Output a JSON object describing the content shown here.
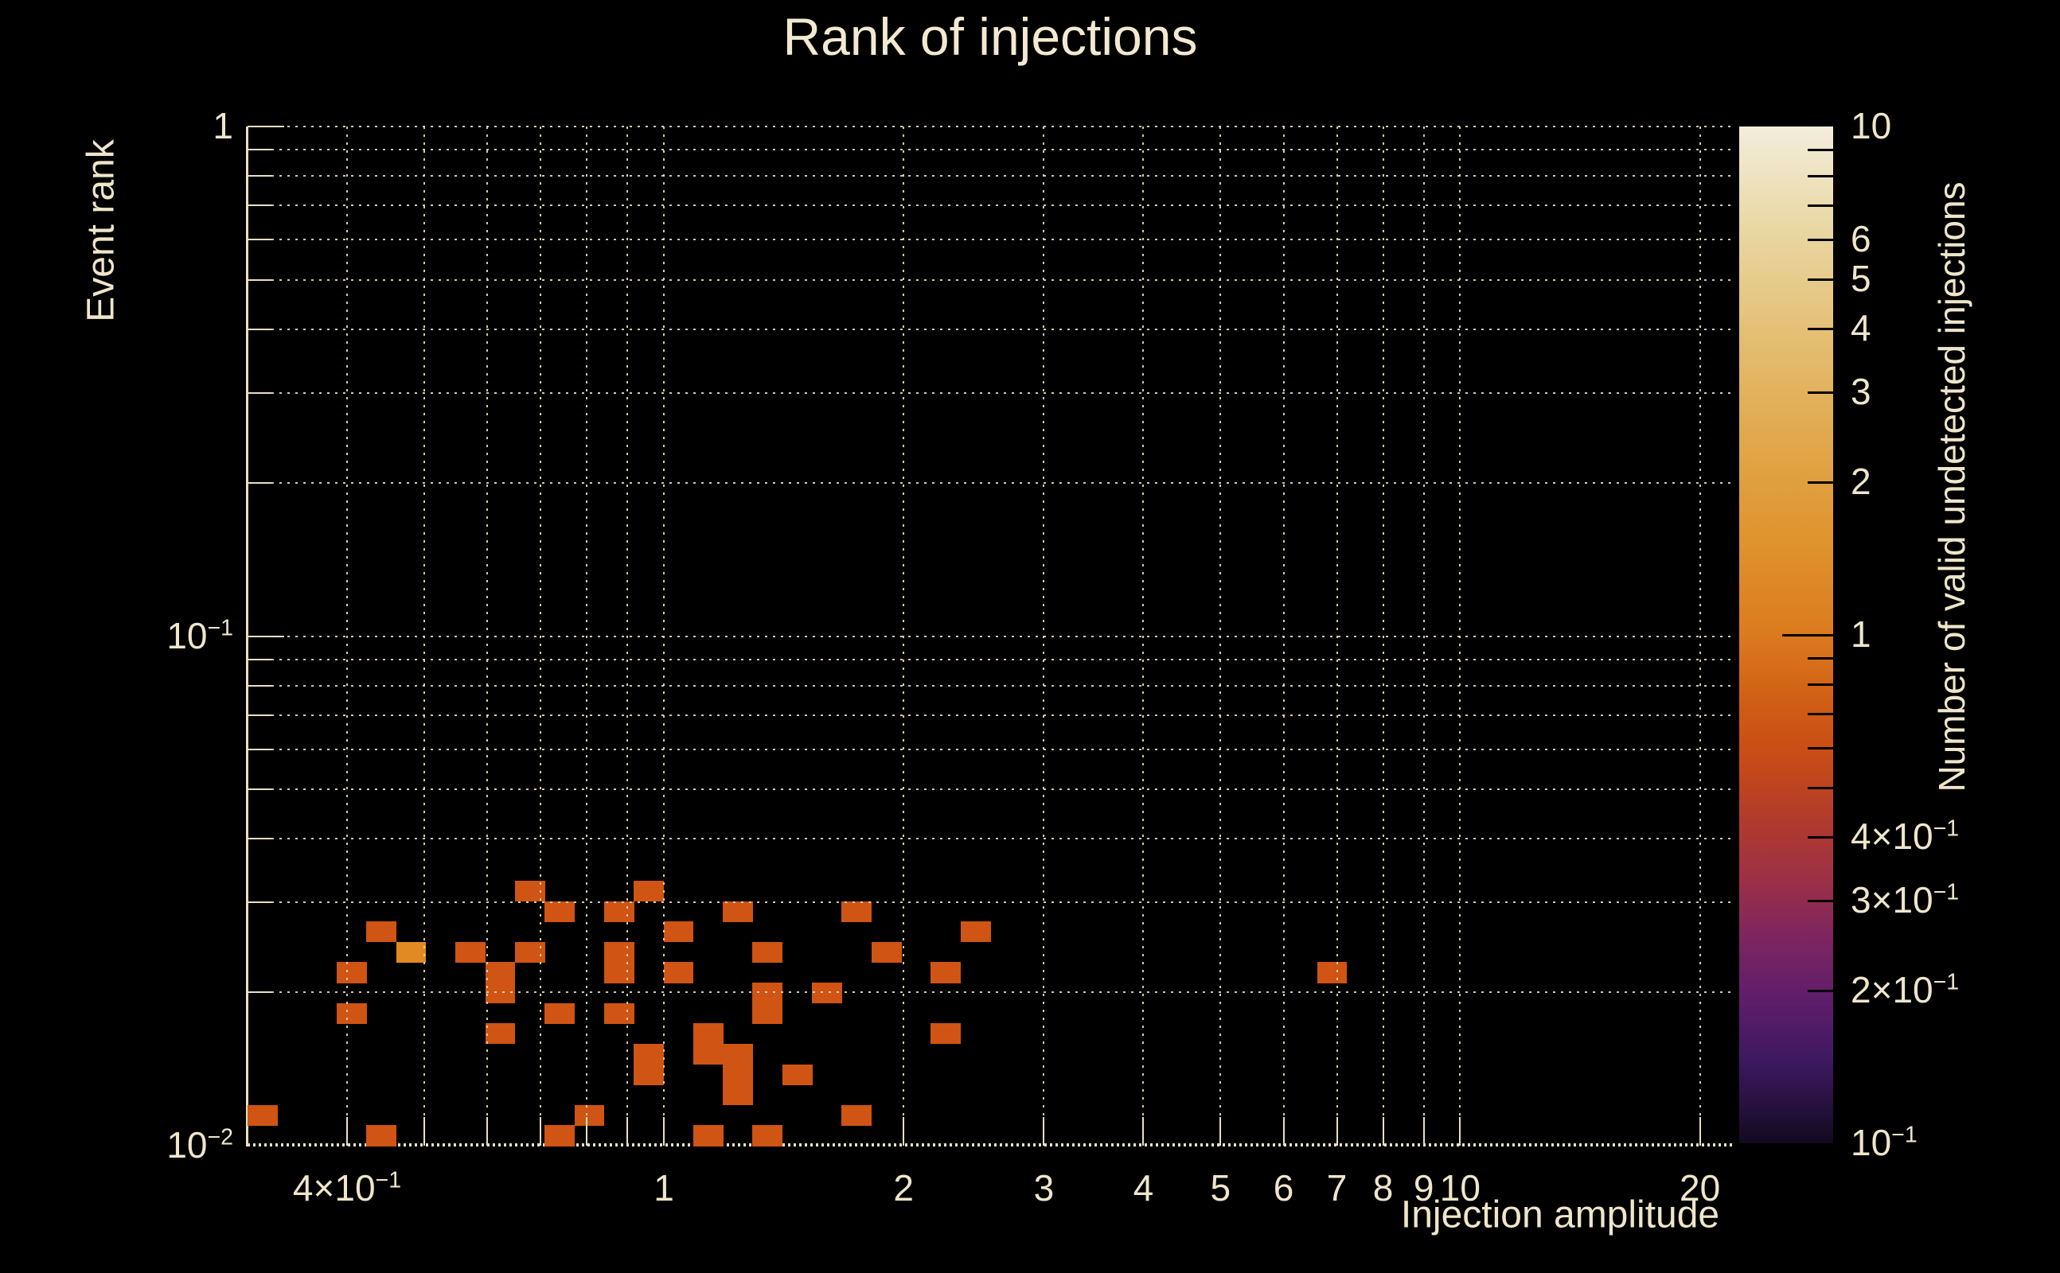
{
  "page": {
    "background": "#000000",
    "text_color": "#efe6ca"
  },
  "chart_data": {
    "type": "heatmap",
    "title": "Rank of injections",
    "xlabel": "Injection amplitude",
    "ylabel": "Event rank",
    "colorbar_label": "Number of valid undetected injections",
    "x_scale": "log",
    "y_scale": "log",
    "z_scale": "log",
    "x_range": [
      0.3,
      22
    ],
    "y_range": [
      0.01,
      1
    ],
    "z_range": [
      0.1,
      10
    ],
    "n_bins_x": 50,
    "n_bins_y": 50,
    "grid": true,
    "x_gridlines": [
      0.4,
      0.5,
      0.6,
      0.7,
      0.8,
      0.9,
      1,
      2,
      3,
      4,
      5,
      6,
      7,
      8,
      9,
      10,
      20
    ],
    "y_gridlines": [
      1,
      0.9,
      0.8,
      0.7,
      0.6,
      0.5,
      0.4,
      0.3,
      0.2,
      0.1,
      0.09,
      0.08,
      0.07,
      0.06,
      0.05,
      0.04,
      0.03,
      0.02
    ],
    "x_tick_labels": [
      {
        "value": 0.4,
        "label": "4×10^−1"
      },
      {
        "value": 1,
        "label": "1"
      },
      {
        "value": 2,
        "label": "2"
      },
      {
        "value": 3,
        "label": "3"
      },
      {
        "value": 4,
        "label": "4"
      },
      {
        "value": 5,
        "label": "5"
      },
      {
        "value": 6,
        "label": "6"
      },
      {
        "value": 7,
        "label": "7"
      },
      {
        "value": 8,
        "label": "8"
      },
      {
        "value": 9,
        "label": "9"
      },
      {
        "value": 10,
        "label": "10"
      },
      {
        "value": 20,
        "label": "20"
      }
    ],
    "y_tick_labels": [
      {
        "value": 1,
        "label": "1"
      },
      {
        "value": 0.1,
        "label": "10^−1"
      },
      {
        "value": 0.01,
        "label": "10^−2"
      }
    ],
    "colorbar_tick_labels": [
      {
        "value": 10,
        "label": "10"
      },
      {
        "value": 6,
        "label": "6"
      },
      {
        "value": 5,
        "label": "5"
      },
      {
        "value": 4,
        "label": "4"
      },
      {
        "value": 3,
        "label": "3"
      },
      {
        "value": 2,
        "label": "2"
      },
      {
        "value": 1,
        "label": "1"
      },
      {
        "value": 0.4,
        "label": "4×10^−1"
      },
      {
        "value": 0.3,
        "label": "3×10^−1"
      },
      {
        "value": 0.2,
        "label": "2×10^−1"
      },
      {
        "value": 0.1,
        "label": "10^−1"
      }
    ],
    "colorbar_ticks": [
      9,
      8,
      7,
      6,
      5,
      4,
      3,
      2,
      1,
      0.9,
      0.8,
      0.7,
      0.6,
      0.5,
      0.4,
      0.3,
      0.2
    ],
    "count_colors": {
      "1": "#d05413",
      "2": "#e18a22"
    },
    "cells_format": "[x_bin_from_0.3, y_bin_from_0.01, count] on 50x50 log grid",
    "cells": [
      [
        0,
        1,
        1
      ],
      [
        4,
        0,
        1
      ],
      [
        10,
        0,
        1
      ],
      [
        11,
        1,
        1
      ],
      [
        15,
        0,
        1
      ],
      [
        17,
        0,
        1
      ],
      [
        20,
        1,
        1
      ],
      [
        3,
        6,
        1
      ],
      [
        3,
        8,
        1
      ],
      [
        4,
        10,
        1
      ],
      [
        5,
        9,
        2
      ],
      [
        7,
        9,
        1
      ],
      [
        8,
        5,
        1
      ],
      [
        8,
        7,
        1
      ],
      [
        8,
        8,
        1
      ],
      [
        9,
        9,
        1
      ],
      [
        9,
        12,
        1
      ],
      [
        10,
        6,
        1
      ],
      [
        10,
        11,
        1
      ],
      [
        12,
        6,
        1
      ],
      [
        12,
        8,
        1
      ],
      [
        12,
        9,
        1
      ],
      [
        12,
        11,
        1
      ],
      [
        13,
        3,
        1
      ],
      [
        13,
        4,
        1
      ],
      [
        13,
        12,
        1
      ],
      [
        14,
        8,
        1
      ],
      [
        14,
        10,
        1
      ],
      [
        15,
        4,
        1
      ],
      [
        15,
        5,
        1
      ],
      [
        16,
        2,
        1
      ],
      [
        16,
        3,
        1
      ],
      [
        16,
        4,
        1
      ],
      [
        16,
        11,
        1
      ],
      [
        17,
        6,
        1
      ],
      [
        17,
        7,
        1
      ],
      [
        17,
        9,
        1
      ],
      [
        18,
        3,
        1
      ],
      [
        19,
        7,
        1
      ],
      [
        20,
        11,
        1
      ],
      [
        21,
        9,
        1
      ],
      [
        23,
        5,
        1
      ],
      [
        23,
        8,
        1
      ],
      [
        24,
        10,
        1
      ],
      [
        36,
        8,
        1
      ]
    ]
  }
}
